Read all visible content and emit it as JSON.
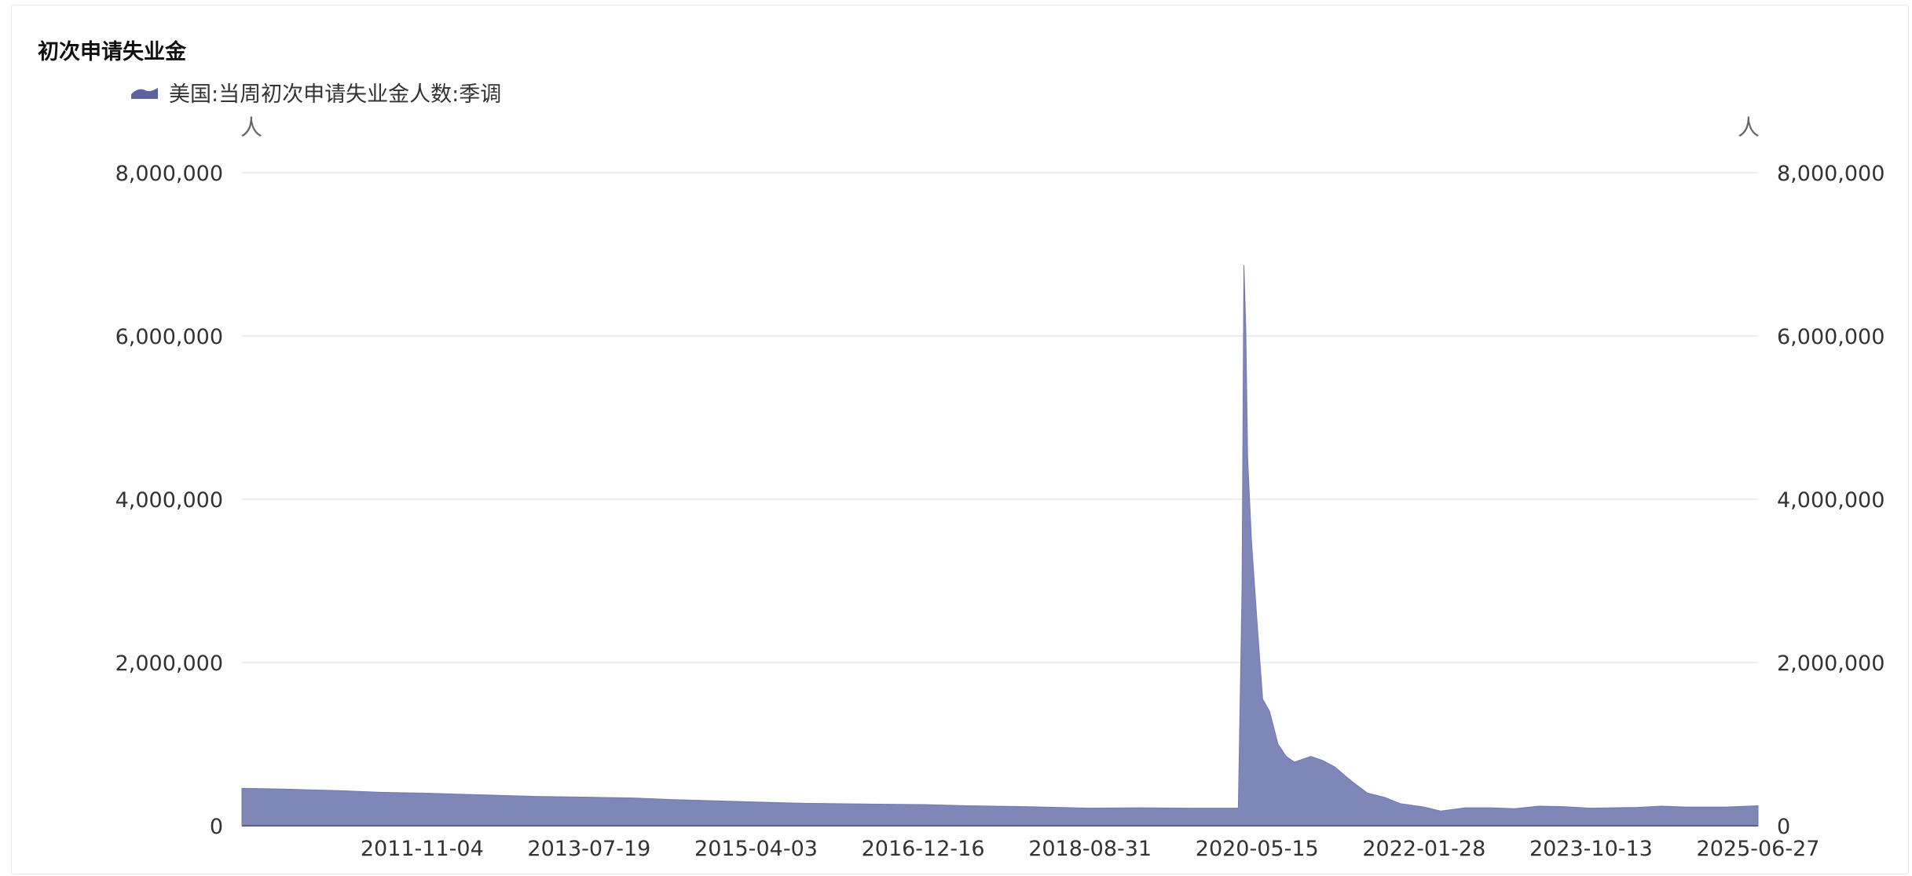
{
  "chart_data": {
    "type": "area",
    "title": "初次申请失业金",
    "series": [
      {
        "name": "美国:当周初次申请失业金人数:季调",
        "color": "#7f86b8",
        "x": [
          "2010-01-01",
          "2010-06-01",
          "2011-01-01",
          "2011-06-01",
          "2011-11-04",
          "2012-06-01",
          "2013-01-01",
          "2013-07-19",
          "2014-01-01",
          "2014-06-01",
          "2015-04-03",
          "2015-10-01",
          "2016-06-01",
          "2016-12-16",
          "2017-06-01",
          "2018-01-01",
          "2018-08-31",
          "2019-03-01",
          "2019-09-01",
          "2020-01-01",
          "2020-03-06",
          "2020-03-20",
          "2020-03-27",
          "2020-04-03",
          "2020-04-10",
          "2020-04-24",
          "2020-05-15",
          "2020-06-05",
          "2020-07-01",
          "2020-08-01",
          "2020-09-01",
          "2020-10-01",
          "2020-12-01",
          "2021-01-15",
          "2021-03-01",
          "2021-05-01",
          "2021-07-01",
          "2021-09-01",
          "2021-11-01",
          "2022-01-28",
          "2022-04-01",
          "2022-07-01",
          "2022-10-01",
          "2023-01-01",
          "2023-04-01",
          "2023-07-01",
          "2023-10-13",
          "2024-01-01",
          "2024-04-01",
          "2024-07-01",
          "2024-10-01",
          "2025-01-01",
          "2025-03-01",
          "2025-06-27"
        ],
        "values": [
          460000,
          450000,
          430000,
          410000,
          400000,
          380000,
          360000,
          350000,
          340000,
          320000,
          290000,
          275000,
          265000,
          260000,
          245000,
          235000,
          215000,
          220000,
          215000,
          215000,
          215000,
          2900000,
          6870000,
          6100000,
          4500000,
          3500000,
          2500000,
          1550000,
          1400000,
          1000000,
          850000,
          780000,
          850000,
          800000,
          720000,
          550000,
          400000,
          350000,
          270000,
          230000,
          180000,
          220000,
          220000,
          210000,
          240000,
          235000,
          215000,
          220000,
          225000,
          240000,
          230000,
          230000,
          230000,
          245000
        ]
      }
    ],
    "xticks": [
      "2011-11-04",
      "2013-07-19",
      "2015-04-03",
      "2016-12-16",
      "2018-08-31",
      "2020-05-15",
      "2022-01-28",
      "2023-10-13",
      "2025-06-27"
    ],
    "y_left": {
      "unit": "人",
      "ticks": [
        "0",
        "2,000,000",
        "4,000,000",
        "6,000,000",
        "8,000,000"
      ],
      "ylim": [
        0,
        8000000
      ]
    },
    "y_right": {
      "unit": "人",
      "ticks": [
        "0",
        "2,000,000",
        "4,000,000",
        "6,000,000",
        "8,000,000"
      ],
      "ylim": [
        0,
        8000000
      ]
    },
    "xlim": [
      "2010-01-01",
      "2025-06-27"
    ],
    "grid": true,
    "legend_position": "top-left"
  },
  "colors": {
    "area": "#7f86b8",
    "axis": "#5b6182",
    "grid": "#e6e8f2",
    "legend_swatch": "#5b63a0"
  }
}
